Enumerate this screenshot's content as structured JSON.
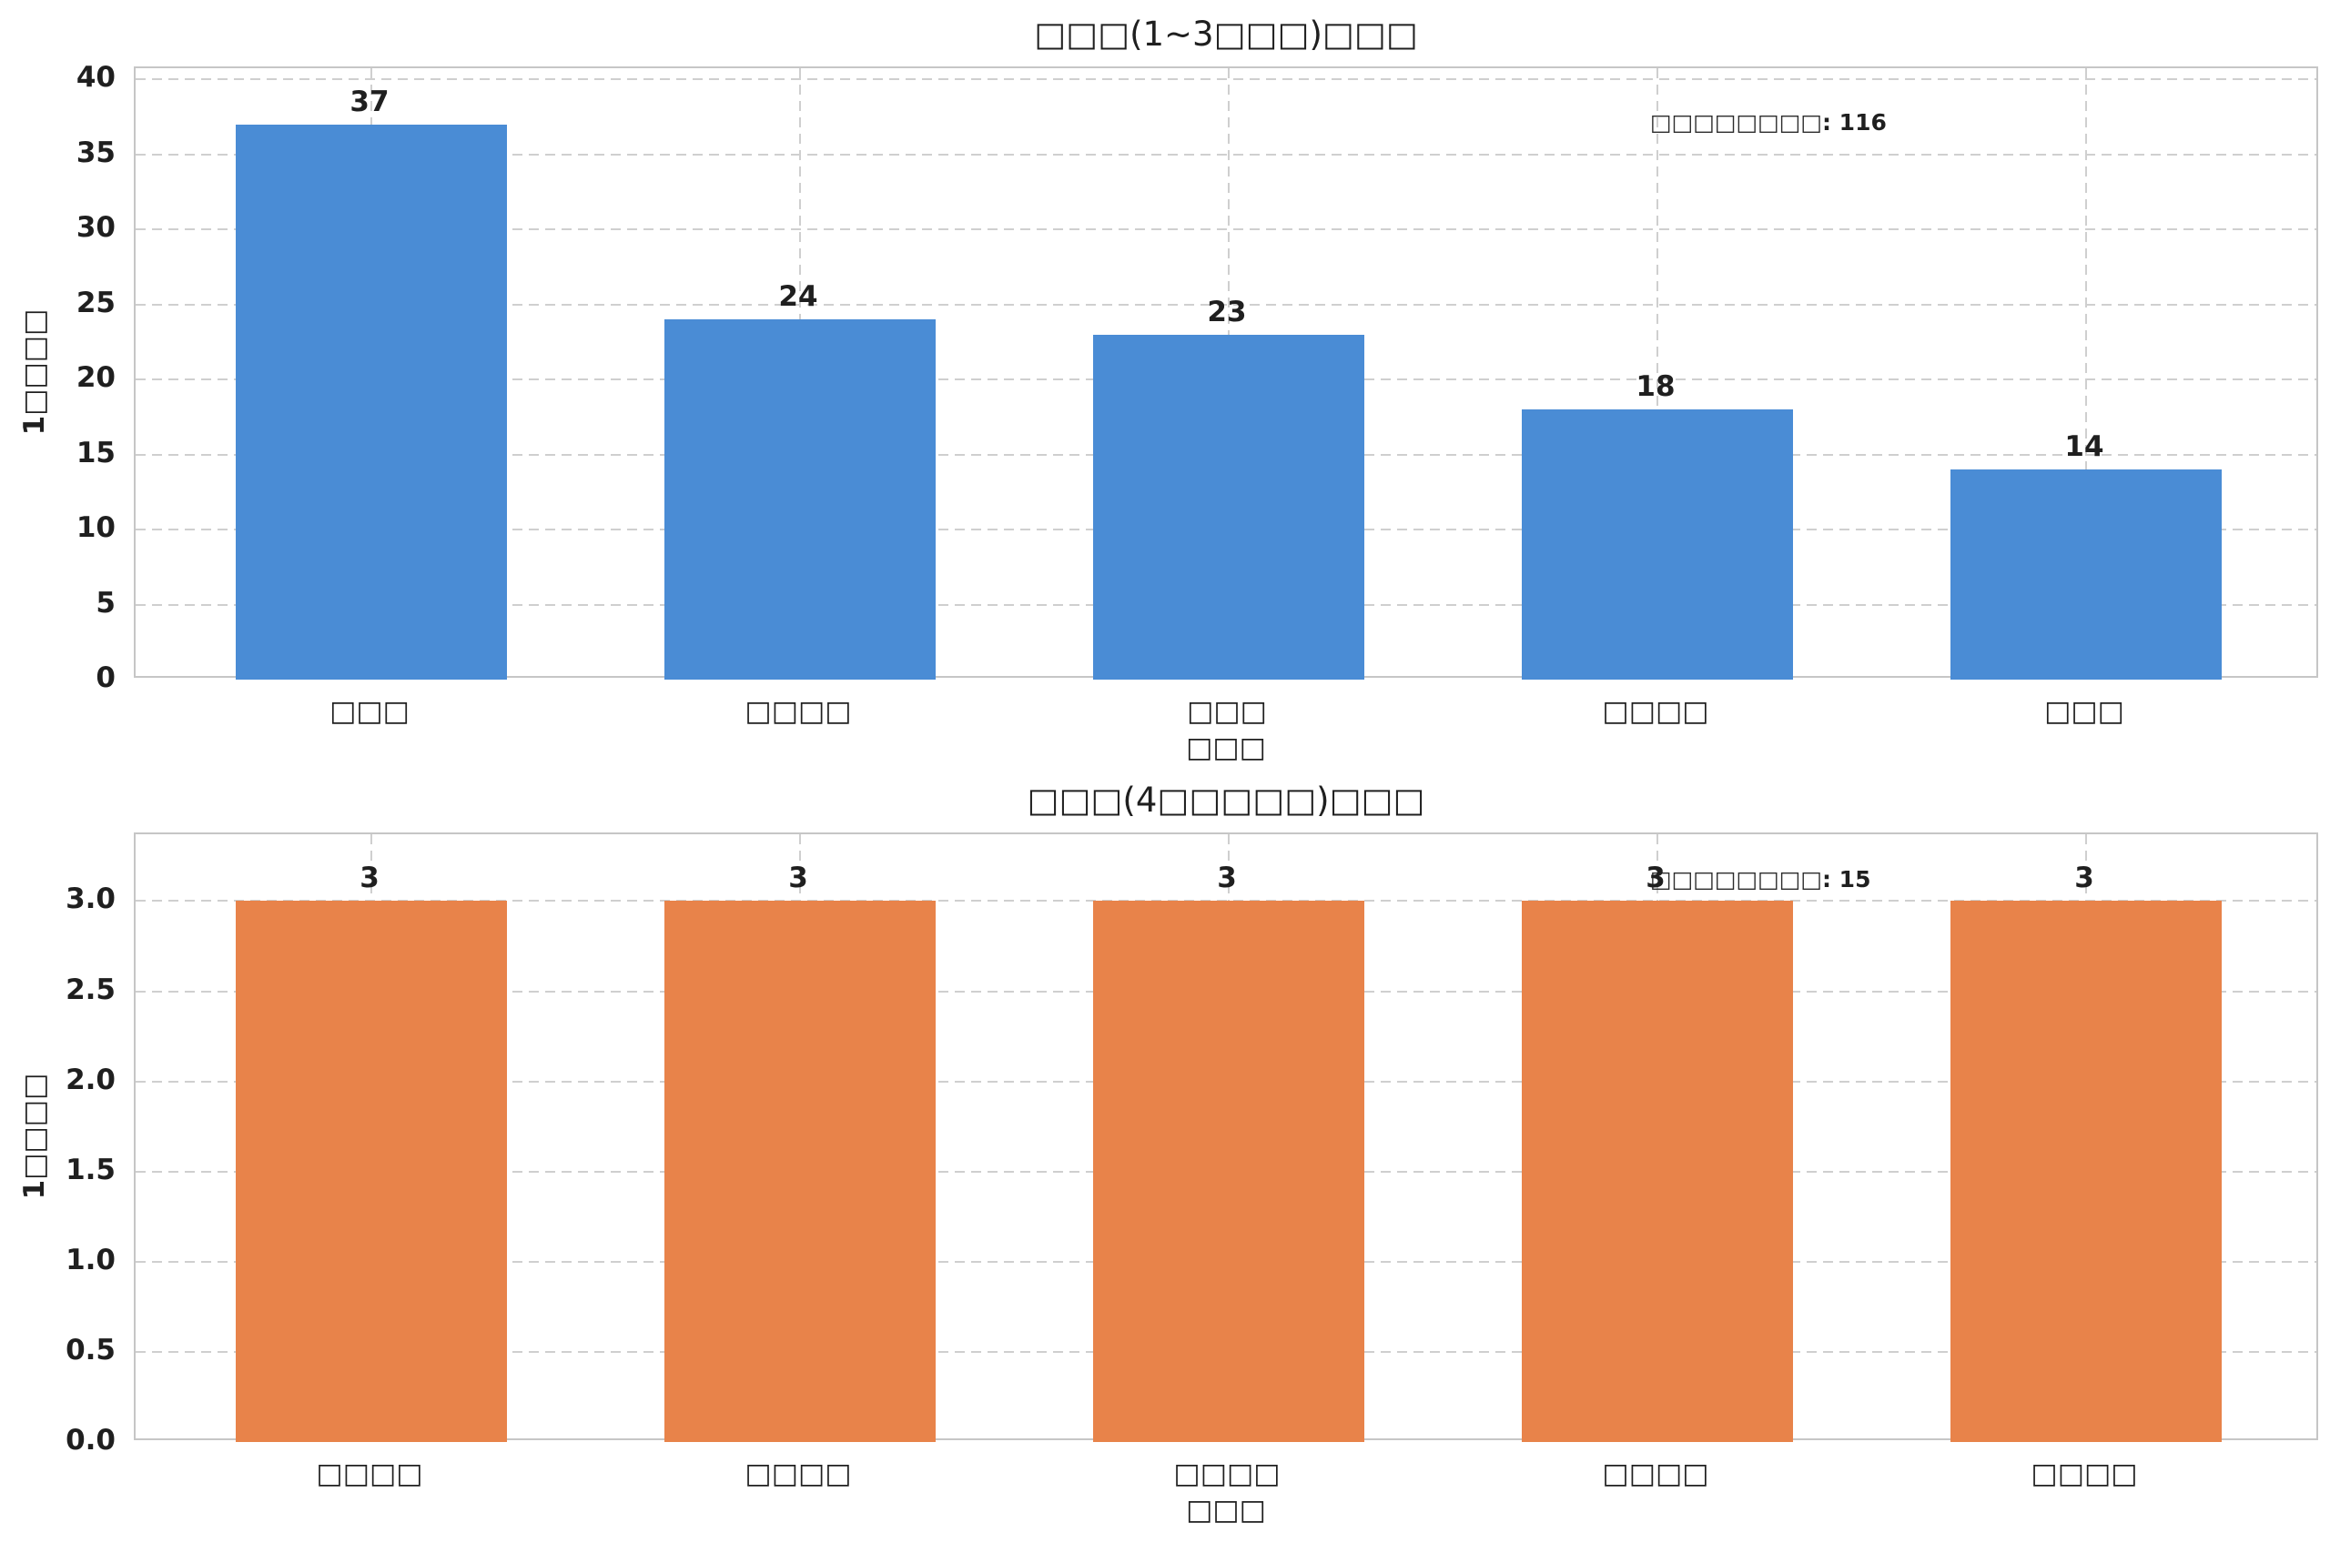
{
  "figure": {
    "background": "#ffffff",
    "text_color": "#1f1f1f",
    "grid_color": "#cfcfcf",
    "spine_color": "#c6c6c6"
  },
  "chart_data": [
    {
      "type": "bar",
      "title": "□□□(1~3□□□)□□□",
      "xlabel": "□□□",
      "ylabel": "1□□□□",
      "categories": [
        "□□□",
        "□□□□",
        "□□□",
        "□□□□",
        "□□□"
      ],
      "values": [
        37,
        24,
        23,
        18,
        14
      ],
      "ytick_values": [
        0,
        5,
        10,
        15,
        20,
        25,
        30,
        35,
        40
      ],
      "ytick_labels": [
        "0",
        "5",
        "10",
        "15",
        "20",
        "25",
        "30",
        "35",
        "40"
      ],
      "ylim": [
        0,
        40.7
      ],
      "grid": "dashed-both-axes",
      "legend": "none",
      "color": "#4a8cd5",
      "annotation": {
        "label": "□□□□□□□□",
        "value": ": 116"
      }
    },
    {
      "type": "bar",
      "title": "□□□(4□□□□□)□□□",
      "xlabel": "□□□",
      "ylabel": "1□□□□",
      "categories": [
        "□□□□",
        "□□□□",
        "□□□□",
        "□□□□",
        "□□□□"
      ],
      "values": [
        3,
        3,
        3,
        3,
        3
      ],
      "ytick_values": [
        0,
        0.5,
        1,
        1.5,
        2,
        2.5,
        3
      ],
      "ytick_labels": [
        "0.0",
        "0.5",
        "1.0",
        "1.5",
        "2.0",
        "2.5",
        "3.0"
      ],
      "ylim": [
        0,
        3.37
      ],
      "grid": "dashed-both-axes",
      "legend": "none",
      "color": "#e8834a",
      "annotation": {
        "label": "□□□□□□□□",
        "value": ": 15"
      }
    }
  ]
}
